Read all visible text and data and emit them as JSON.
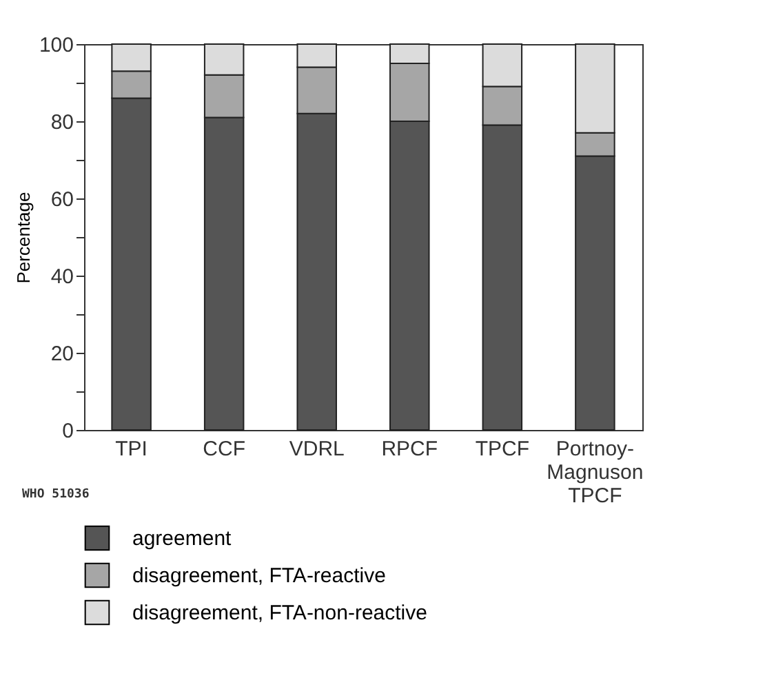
{
  "chart_data": {
    "type": "bar",
    "stacked": true,
    "ylabel": "Percentage",
    "categories": [
      "TPI",
      "CCF",
      "VDRL",
      "RPCF",
      "TPCF",
      "Portnoy-Magnuson TPCF"
    ],
    "series": [
      {
        "name": "agreement",
        "color": "#555555",
        "values": [
          86,
          81,
          82,
          80,
          79,
          71
        ]
      },
      {
        "name": "disagreement, FTA-reactive",
        "color": "#a6a6a6",
        "values": [
          7,
          11,
          12,
          15,
          10,
          6
        ]
      },
      {
        "name": "disagreement, FTA-non-reactive",
        "color": "#dcdcdc",
        "values": [
          7,
          8,
          6,
          5,
          11,
          23
        ]
      }
    ],
    "ylim": [
      0,
      100
    ],
    "yticks": [
      0,
      {
        "value": 10,
        "label": null
      },
      20,
      {
        "value": 30,
        "label": null
      },
      40,
      {
        "value": 50,
        "label": null
      },
      60,
      {
        "value": 70,
        "label": null
      },
      80,
      {
        "value": 90,
        "label": null
      },
      100
    ],
    "grid": false,
    "legend": "bottom",
    "annotations": [
      "WHO 51036"
    ]
  }
}
